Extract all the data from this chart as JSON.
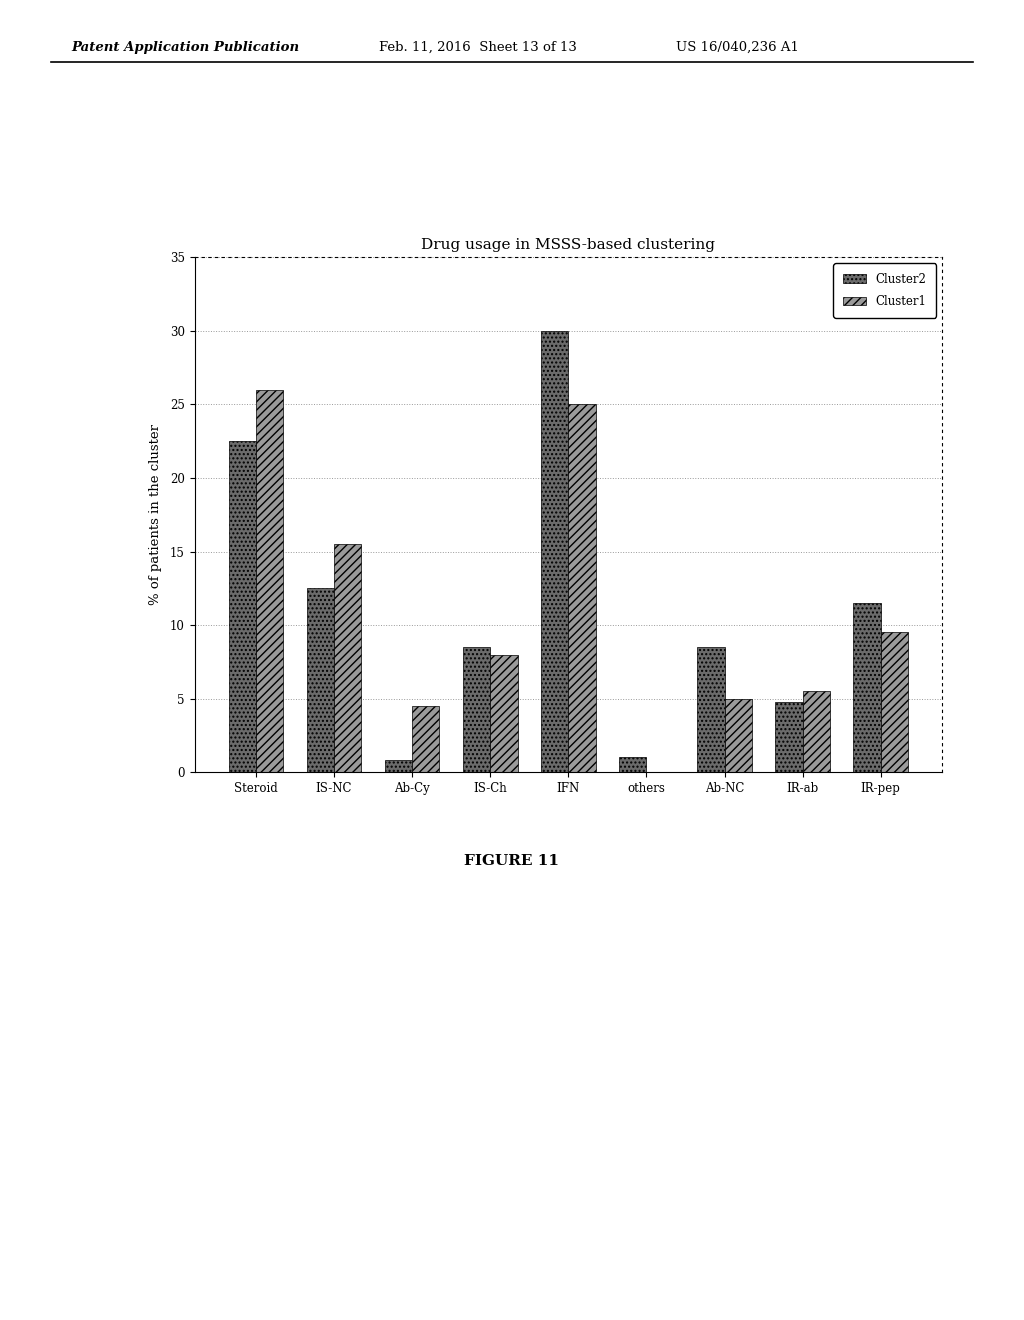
{
  "title": "Drug usage in MSSS-based clustering",
  "ylabel": "% of patients in the cluster",
  "categories": [
    "Steroid",
    "IS-NC",
    "Ab-Cy",
    "IS-Ch",
    "IFN",
    "others",
    "Ab-NC",
    "IR-ab",
    "IR-pep"
  ],
  "cluster2_values": [
    22.5,
    12.5,
    0.8,
    8.5,
    30.0,
    1.0,
    8.5,
    4.8,
    11.5
  ],
  "cluster1_values": [
    26.0,
    15.5,
    4.5,
    8.0,
    25.0,
    0.0,
    5.0,
    5.5,
    9.5
  ],
  "cluster2_color": "#6b6b6b",
  "cluster1_color": "#9a9a9a",
  "cluster2_hatch": "....",
  "cluster1_hatch": "////",
  "ylim": [
    0,
    35
  ],
  "yticks": [
    0,
    5,
    10,
    15,
    20,
    25,
    30,
    35
  ],
  "legend_labels": [
    "Cluster2",
    "Cluster1"
  ],
  "bar_width": 0.35,
  "figure_caption": "FIGURE 11",
  "header_left": "Patent Application Publication",
  "header_mid": "Feb. 11, 2016  Sheet 13 of 13",
  "header_right": "US 16/040,236 A1"
}
